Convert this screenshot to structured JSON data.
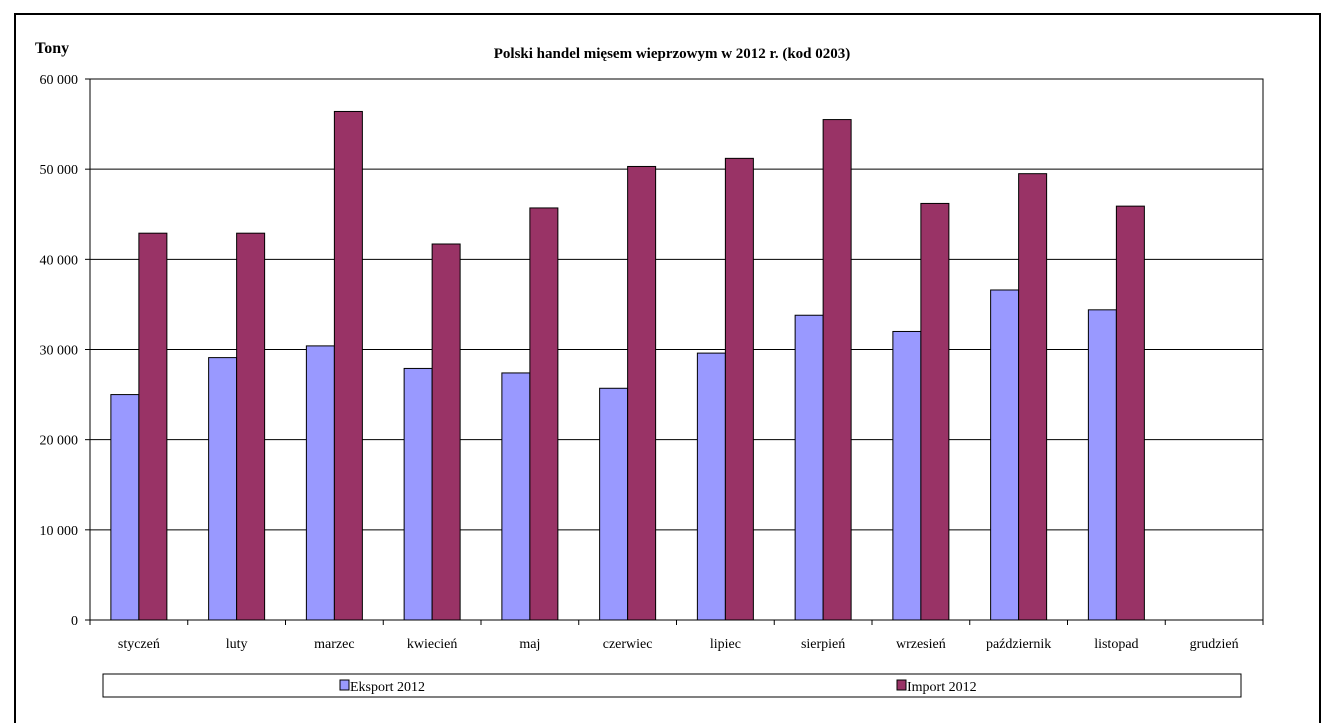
{
  "chart_data": {
    "type": "bar",
    "title": "Polski handel mięsem wieprzowym w 2012 r. (kod 0203)",
    "ylabel": "Tony",
    "xlabel": "",
    "ylim": [
      0,
      60000
    ],
    "yticks": [
      0,
      10000,
      20000,
      30000,
      40000,
      50000,
      60000
    ],
    "ytick_labels": [
      "0",
      "10 000",
      "20 000",
      "30 000",
      "40 000",
      "50 000",
      "60 000"
    ],
    "grid": true,
    "legend_position": "bottom",
    "categories": [
      "styczeń",
      "luty",
      "marzec",
      "kwiecień",
      "maj",
      "czerwiec",
      "lipiec",
      "sierpień",
      "wrzesień",
      "październik",
      "listopad",
      "grudzień"
    ],
    "series": [
      {
        "name": "Eksport 2012",
        "color": "#9999ff",
        "values": [
          25000,
          29100,
          30400,
          27900,
          27400,
          25700,
          29600,
          33800,
          32000,
          36600,
          34400,
          null
        ]
      },
      {
        "name": "Import 2012",
        "color": "#993366",
        "values": [
          42900,
          42900,
          56400,
          41700,
          45700,
          50300,
          51200,
          55500,
          46200,
          49500,
          45900,
          null
        ]
      }
    ]
  }
}
